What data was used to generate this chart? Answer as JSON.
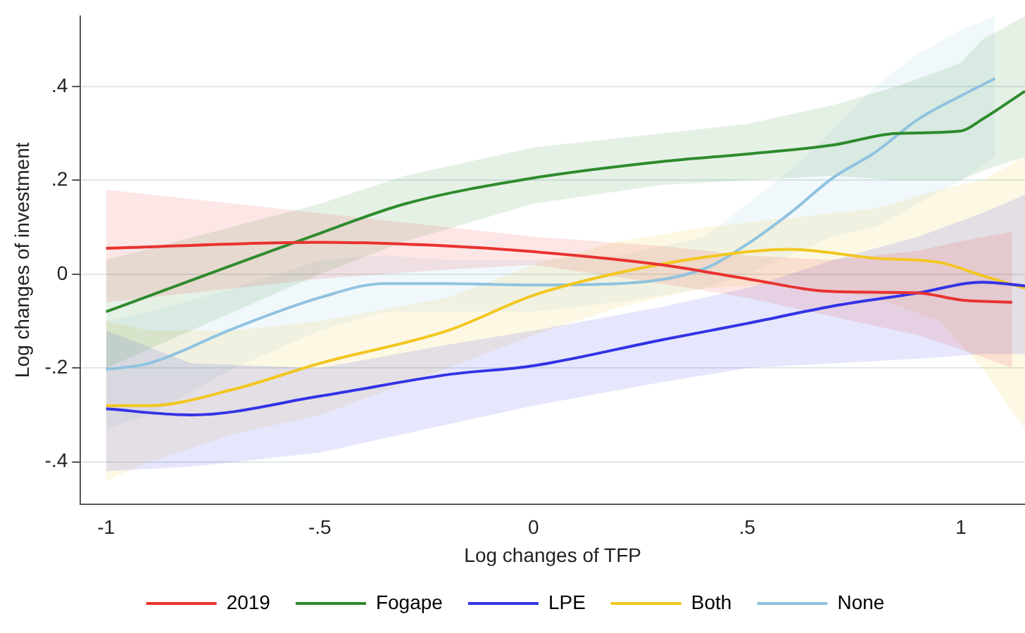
{
  "chart_data": {
    "type": "line",
    "xlabel": "Log changes of TFP",
    "ylabel": "Log changes of investment",
    "xlim": [
      -1.06,
      1.15
    ],
    "ylim": [
      -0.49,
      0.55
    ],
    "xticks": [
      -1,
      {
        "value": -0.5,
        "label": "-.5"
      },
      0,
      {
        "value": 0.5,
        "label": ".5"
      },
      1
    ],
    "yticks": [
      {
        "value": -0.4,
        "label": "-.4"
      },
      {
        "value": -0.2,
        "label": "-.2"
      },
      0,
      {
        "value": 0.2,
        "label": ".2"
      },
      {
        "value": 0.4,
        "label": ".4"
      }
    ],
    "grid": "y",
    "legend": "bottom",
    "line_style": "solid",
    "marker": "none",
    "series": [
      {
        "name": "2019",
        "color": "#e8322f",
        "x": [
          -1,
          -0.5,
          -0.2,
          0,
          0.3,
          0.5,
          0.7,
          0.9,
          1.0,
          1.12
        ],
        "values": [
          0.055,
          0.068,
          0.06,
          0.048,
          0.02,
          -0.01,
          -0.037,
          -0.04,
          -0.055,
          -0.06
        ],
        "lower": [
          -0.06,
          -0.01,
          0.01,
          0.02,
          -0.02,
          -0.05,
          -0.09,
          -0.13,
          -0.16,
          -0.2
        ],
        "upper": [
          0.18,
          0.13,
          0.1,
          0.08,
          0.06,
          0.04,
          0.03,
          0.05,
          0.07,
          0.09
        ]
      },
      {
        "name": "Fogape",
        "color": "#2e8b2e",
        "x": [
          -1,
          -0.5,
          -0.3,
          0,
          0.3,
          0.5,
          0.7,
          0.85,
          1.0,
          1.05,
          1.15
        ],
        "values": [
          -0.08,
          0.087,
          0.15,
          0.205,
          0.24,
          0.256,
          0.275,
          0.3,
          0.305,
          0.33,
          0.39
        ],
        "lower": [
          -0.2,
          0.0,
          0.07,
          0.15,
          0.19,
          0.2,
          0.21,
          0.2,
          0.2,
          0.22,
          0.25
        ],
        "upper": [
          0.03,
          0.15,
          0.21,
          0.27,
          0.3,
          0.32,
          0.36,
          0.4,
          0.45,
          0.5,
          0.55
        ]
      },
      {
        "name": "LPE",
        "color": "#3333e6",
        "x": [
          -1,
          -0.8,
          -0.5,
          -0.2,
          0,
          0.3,
          0.5,
          0.7,
          0.9,
          1.05,
          1.15
        ],
        "values": [
          -0.287,
          -0.3,
          -0.26,
          -0.214,
          -0.195,
          -0.14,
          -0.105,
          -0.068,
          -0.04,
          -0.017,
          -0.025
        ],
        "lower": [
          -0.42,
          -0.41,
          -0.38,
          -0.32,
          -0.28,
          -0.23,
          -0.2,
          -0.19,
          -0.18,
          -0.17,
          -0.17
        ],
        "upper": [
          -0.12,
          -0.19,
          -0.2,
          -0.15,
          -0.12,
          -0.07,
          -0.03,
          0.03,
          0.08,
          0.13,
          0.17
        ]
      },
      {
        "name": "Both",
        "color": "#f2c61f",
        "x": [
          -1,
          -0.9,
          -0.7,
          -0.5,
          -0.2,
          0,
          0.2,
          0.4,
          0.6,
          0.8,
          0.95,
          1.05,
          1.15
        ],
        "values": [
          -0.28,
          -0.28,
          -0.245,
          -0.19,
          -0.12,
          -0.045,
          0.003,
          0.036,
          0.053,
          0.034,
          0.025,
          -0.003,
          -0.03
        ],
        "lower": [
          -0.44,
          -0.4,
          -0.34,
          -0.3,
          -0.2,
          -0.13,
          -0.07,
          -0.03,
          -0.02,
          -0.05,
          -0.1,
          -0.2,
          -0.33
        ],
        "upper": [
          -0.1,
          -0.12,
          -0.12,
          -0.1,
          -0.05,
          0.02,
          0.07,
          0.1,
          0.12,
          0.14,
          0.18,
          0.2,
          0.25
        ]
      },
      {
        "name": "None",
        "color": "#8fc3e0",
        "x": [
          -1,
          -0.9,
          -0.7,
          -0.5,
          -0.35,
          -0.2,
          0,
          0.2,
          0.4,
          0.5,
          0.6,
          0.7,
          0.8,
          0.9,
          1.0,
          1.08
        ],
        "values": [
          -0.203,
          -0.19,
          -0.115,
          -0.05,
          -0.02,
          -0.02,
          -0.023,
          -0.02,
          0.012,
          0.064,
          0.13,
          0.205,
          0.26,
          0.33,
          0.38,
          0.417
        ],
        "lower": [
          -0.33,
          -0.3,
          -0.2,
          -0.12,
          -0.08,
          -0.08,
          -0.08,
          -0.06,
          -0.03,
          0.0,
          0.04,
          0.08,
          0.1,
          0.15,
          0.2,
          0.25
        ],
        "upper": [
          -0.1,
          -0.08,
          -0.03,
          0.03,
          0.04,
          0.03,
          0.03,
          0.04,
          0.08,
          0.15,
          0.22,
          0.31,
          0.4,
          0.47,
          0.52,
          0.55
        ]
      }
    ]
  }
}
